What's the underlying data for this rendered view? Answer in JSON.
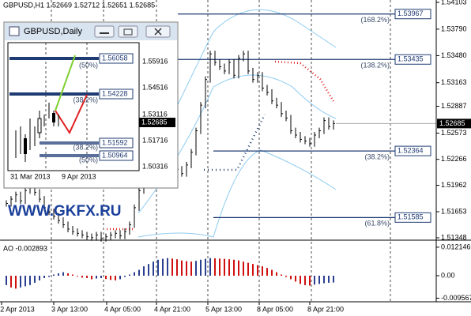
{
  "header": "GBPUSD,H1  1.52669 1.52712 1.52651 1.52685",
  "price_axis": {
    "ylim": [
      1.5132,
      1.54131
    ],
    "ticks": [
      1.54103,
      {
        "value": 1.5379,
        "label": "1.53790"
      },
      {
        "value": 1.5348,
        "label": "1.53480"
      },
      1.53163,
      1.52887,
      1.52573,
      1.52266,
      1.51962,
      1.51653,
      1.51348
    ]
  },
  "current_price": 1.52685,
  "levels": [
    {
      "price": 1.53967,
      "fib": "(168.2%)"
    },
    {
      "price": 1.53435,
      "fib": "(138.2%)"
    },
    {
      "price": 1.52364,
      "fib": "(38.2%)"
    },
    {
      "price": 1.51585,
      "fib": "(61.8%)"
    }
  ],
  "closes": [
    1.5175,
    1.518,
    1.5185,
    1.5178,
    1.519,
    1.5195,
    1.5188,
    1.518,
    1.517,
    1.5165,
    1.516,
    1.5155,
    1.515,
    1.5145,
    1.5142,
    1.514,
    1.5138,
    1.5136,
    1.5135,
    1.5138,
    1.5134,
    1.5136,
    1.5138,
    1.514,
    1.5137,
    1.5142,
    1.515,
    1.517,
    1.519,
    1.522,
    1.524,
    1.526,
    1.525,
    1.527,
    1.524,
    1.523,
    1.5215,
    1.521,
    1.522,
    1.5235,
    1.526,
    1.529,
    1.532,
    1.535,
    1.534,
    1.5335,
    1.533,
    1.534,
    1.5325,
    1.5345,
    1.535,
    1.533,
    1.532,
    1.5325,
    1.531,
    1.5305,
    1.5295,
    1.529,
    1.528,
    1.5275,
    1.526,
    1.5255,
    1.525,
    1.5248,
    1.5245,
    1.5255,
    1.526,
    1.5272,
    1.5265,
    1.52685
  ],
  "ao": {
    "label": "AO -0.002893",
    "ylim": [
      -0.0111,
      0.0148
    ],
    "ticks": [
      0.012146,
      {
        "value": 0,
        "label": "0.00"
      },
      -0.009567
    ],
    "values": [
      -0.004,
      -0.005,
      -0.0055,
      -0.005,
      -0.0045,
      -0.004,
      -0.003,
      -0.002,
      -0.001,
      -0.0005,
      0.0005,
      0.001,
      0.0015,
      0.001,
      0.0005,
      -0.0003,
      -0.0008,
      -0.001,
      -0.0015,
      -0.0012,
      -0.001,
      -0.0014,
      -0.0018,
      -0.002,
      -0.0015,
      -0.0005,
      0.0005,
      0.0015,
      0.0025,
      0.004,
      0.005,
      0.006,
      0.0068,
      0.0072,
      0.0075,
      0.0073,
      0.007,
      0.0065,
      0.0062,
      0.006,
      0.0063,
      0.0068,
      0.0072,
      0.0075,
      0.0074,
      0.0073,
      0.0072,
      0.007,
      0.0068,
      0.0065,
      0.006,
      0.0055,
      0.005,
      0.0045,
      0.004,
      0.0033,
      0.0025,
      0.0015,
      0.0005,
      -0.0005,
      -0.0015,
      -0.0025,
      -0.0035,
      -0.004,
      -0.0042,
      -0.0038,
      -0.0035,
      -0.0032,
      -0.003,
      -0.0029
    ]
  },
  "time_labels": [
    "2 Apr 2013",
    "3 Apr 13:00",
    "4 Apr 05:00",
    "4 Apr 21:00",
    "5 Apr 13:00",
    "8 Apr 05:00",
    "8 Apr 21:00"
  ],
  "watermark": "WWW.GKFX.RU",
  "inset": {
    "title": "GBPUSD,Daily",
    "axis": [
      "1.55916",
      "1.54516",
      "1.53116",
      "1.51716",
      "1.50316"
    ],
    "current": "1.52685",
    "levels": [
      "1.56058",
      "1.54228",
      "1.51592",
      "1.50964"
    ],
    "fibs": [
      "(50%)",
      "(38.2%)",
      "(38.2%)",
      "(50%)"
    ],
    "dates": [
      "31 Mar 2013",
      "9 Apr 2013"
    ]
  }
}
